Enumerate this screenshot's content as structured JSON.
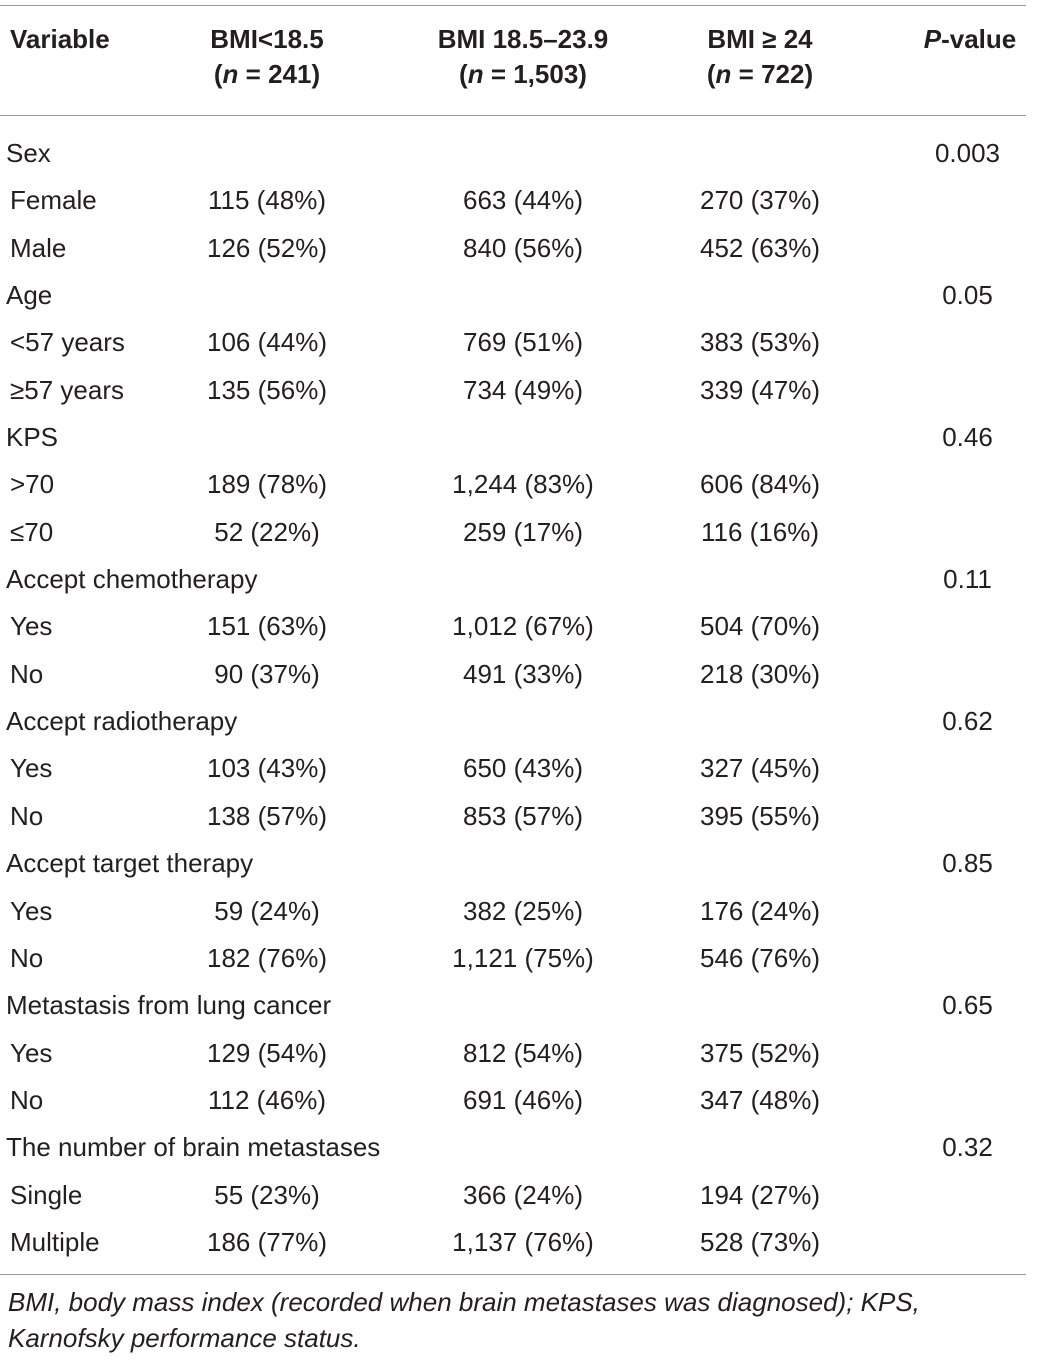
{
  "header": {
    "variable": "Variable",
    "col1_line1": "BMI<18.5",
    "col1_n": "n",
    "col1_rest": " = 241)",
    "col2_line1": "BMI 18.5–23.9",
    "col2_n": "n",
    "col2_rest": " = 1,503)",
    "col3_line1": "BMI ≥ 24",
    "col3_n": "n",
    "col3_rest": " = 722)",
    "p_italic": "P",
    "p_rest": "-value"
  },
  "rows": [
    {
      "label": "Sex",
      "c1": "",
      "c2": "",
      "c3": "",
      "p": "0.003",
      "group": true
    },
    {
      "label": "Female",
      "c1": "115 (48%)",
      "c2": "663 (44%)",
      "c3": "270 (37%)",
      "p": ""
    },
    {
      "label": "Male",
      "c1": "126 (52%)",
      "c2": "840 (56%)",
      "c3": "452 (63%)",
      "p": ""
    },
    {
      "label": "Age",
      "c1": "",
      "c2": "",
      "c3": "",
      "p": "0.05",
      "group": true
    },
    {
      "label": "<57 years",
      "c1": "106 (44%)",
      "c2": "769 (51%)",
      "c3": "383 (53%)",
      "p": ""
    },
    {
      "label": "≥57 years",
      "c1": "135 (56%)",
      "c2": "734 (49%)",
      "c3": "339 (47%)",
      "p": ""
    },
    {
      "label": "KPS",
      "c1": "",
      "c2": "",
      "c3": "",
      "p": "0.46",
      "group": true
    },
    {
      "label": ">70",
      "c1": "189 (78%)",
      "c2": "1,244 (83%)",
      "c3": "606 (84%)",
      "p": ""
    },
    {
      "label": "≤70",
      "c1": "52 (22%)",
      "c2": "259 (17%)",
      "c3": "116 (16%)",
      "p": ""
    },
    {
      "label": "Accept chemotherapy",
      "c1": "",
      "c2": "",
      "c3": "",
      "p": "0.11",
      "group": true
    },
    {
      "label": "Yes",
      "c1": "151 (63%)",
      "c2": "1,012 (67%)",
      "c3": "504 (70%)",
      "p": ""
    },
    {
      "label": "No",
      "c1": "90 (37%)",
      "c2": "491 (33%)",
      "c3": "218 (30%)",
      "p": ""
    },
    {
      "label": "Accept radiotherapy",
      "c1": "",
      "c2": "",
      "c3": "",
      "p": "0.62",
      "group": true
    },
    {
      "label": "Yes",
      "c1": "103 (43%)",
      "c2": "650 (43%)",
      "c3": "327 (45%)",
      "p": ""
    },
    {
      "label": "No",
      "c1": "138 (57%)",
      "c2": "853 (57%)",
      "c3": "395 (55%)",
      "p": ""
    },
    {
      "label": "Accept target therapy",
      "c1": "",
      "c2": "",
      "c3": "",
      "p": "0.85",
      "group": true
    },
    {
      "label": "Yes",
      "c1": "59 (24%)",
      "c2": "382 (25%)",
      "c3": "176 (24%)",
      "p": ""
    },
    {
      "label": "No",
      "c1": "182 (76%)",
      "c2": "1,121 (75%)",
      "c3": "546 (76%)",
      "p": ""
    },
    {
      "label": "Metastasis from lung cancer",
      "c1": "",
      "c2": "",
      "c3": "",
      "p": "0.65",
      "group": true
    },
    {
      "label": "Yes",
      "c1": "129 (54%)",
      "c2": "812 (54%)",
      "c3": "375 (52%)",
      "p": ""
    },
    {
      "label": "No",
      "c1": "112 (46%)",
      "c2": "691 (46%)",
      "c3": "347 (48%)",
      "p": ""
    },
    {
      "label": "The number of brain metastases",
      "c1": "",
      "c2": "",
      "c3": "",
      "p": "0.32",
      "group": true
    },
    {
      "label": "Single",
      "c1": "55 (23%)",
      "c2": "366 (24%)",
      "c3": "194 (27%)",
      "p": ""
    },
    {
      "label": "Multiple",
      "c1": "186 (77%)",
      "c2": "1,137 (76%)",
      "c3": "528 (73%)",
      "p": ""
    }
  ],
  "footnote": "BMI, body mass index (recorded when brain metastases was diagnosed); KPS, Karnofsky performance status."
}
